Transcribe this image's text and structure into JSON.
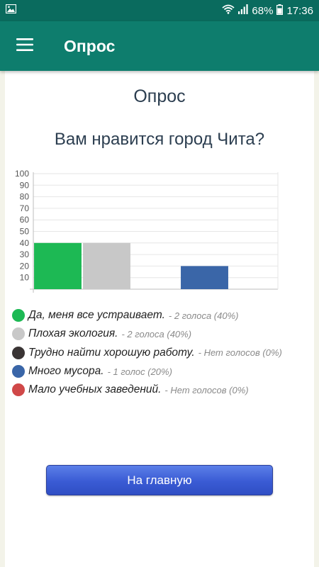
{
  "status_bar": {
    "battery": "68%",
    "time": "17:36"
  },
  "app_bar": {
    "title": "Опрос"
  },
  "poll": {
    "heading": "Опрос",
    "question": "Вам нравится город Чита?",
    "options": [
      {
        "label": "Да, меня все устраивает.",
        "votes": "- 2 голоса (40%)",
        "color": "#1db954"
      },
      {
        "label": "Плохая экология.",
        "votes": "- 2 голоса (40%)",
        "color": "#c8c8c8"
      },
      {
        "label": "Трудно найти хорошую работу.",
        "votes": "- Нет голосов (0%)",
        "color": "#3a3434"
      },
      {
        "label": "Много мусора.",
        "votes": "- 1 голос (20%)",
        "color": "#3a66a8"
      },
      {
        "label": "Мало учебных заведений.",
        "votes": "- Нет голосов (0%)",
        "color": "#d04848"
      }
    ]
  },
  "chart_data": {
    "type": "bar",
    "categories": [
      "Да, меня все устраивает.",
      "Плохая экология.",
      "Трудно найти хорошую работу.",
      "Много мусора.",
      "Мало учебных заведений."
    ],
    "values": [
      40,
      40,
      0,
      20,
      0
    ],
    "colors": [
      "#1db954",
      "#c8c8c8",
      "#3a3434",
      "#3a66a8",
      "#d04848"
    ],
    "ylim": [
      0,
      100
    ],
    "yticks": [
      10,
      20,
      30,
      40,
      50,
      60,
      70,
      80,
      90,
      100
    ],
    "grid": true,
    "legend": "below"
  },
  "home_button": {
    "label": "На главную"
  }
}
